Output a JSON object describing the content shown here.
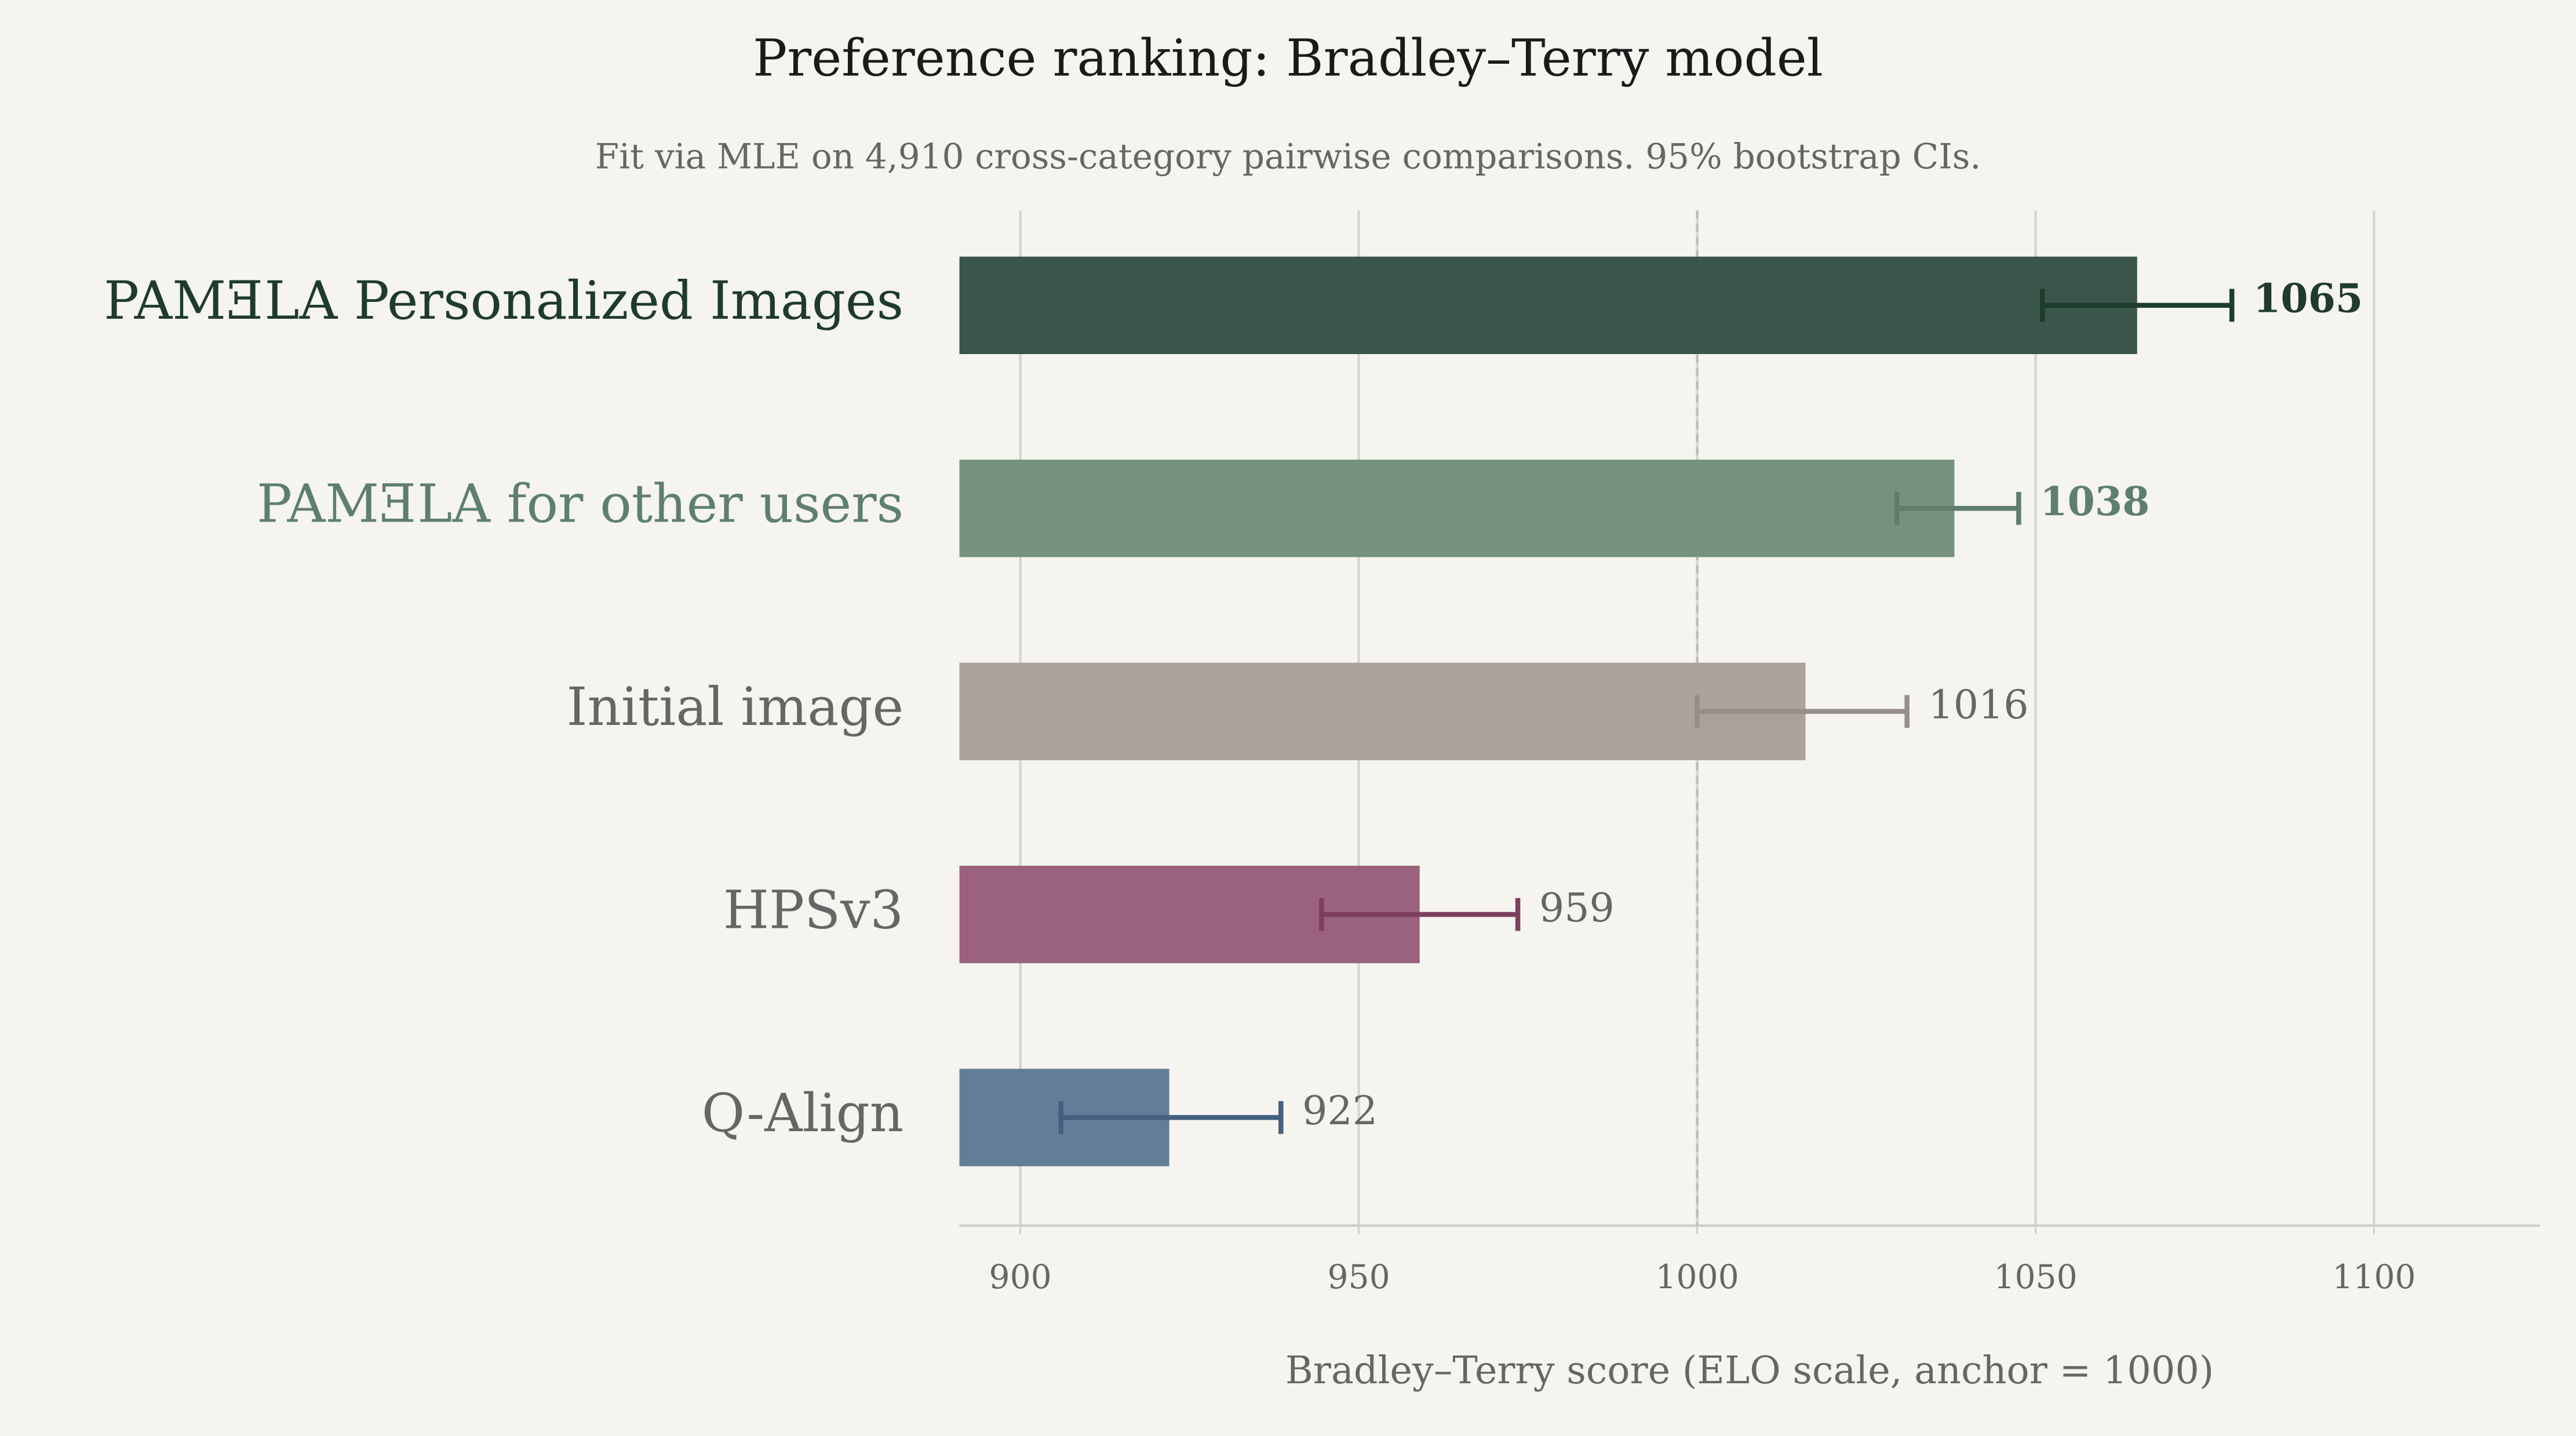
{
  "chart_data": {
    "type": "bar",
    "orientation": "horizontal",
    "title": "Preference ranking: Bradley–Terry model",
    "subtitle": "Fit via MLE on 4,910 cross-category pairwise comparisons. 95% bootstrap CIs.",
    "x_label": "Bradley–Terry score (ELO scale, anchor = 1000)",
    "categories": [
      "PAMƎLA Personalized Images",
      "PAMƎLA for other users",
      "Initial image",
      "HPSv3",
      "Q-Align"
    ],
    "values": [
      1065,
      1038,
      1016,
      959,
      922
    ],
    "ci": [
      [
        1051,
        1079
      ],
      [
        1029.5,
        1047.5
      ],
      [
        1000,
        1031
      ],
      [
        944.5,
        973.5
      ],
      [
        906,
        938.5
      ]
    ],
    "colors": [
      "#3a5549",
      "#76927f",
      "#aba29b",
      "#9a627c",
      "#637d99"
    ],
    "error_colors": [
      "#1d3d2f",
      "#5e7d6c",
      "#968e88",
      "#7d3f5e",
      "#44607f"
    ],
    "label_colors": [
      "#1f3a2e",
      "#5f7f6e",
      "#666666",
      "#666666",
      "#666666"
    ],
    "bold_value_labels": [
      true,
      true,
      false,
      false,
      false
    ],
    "reference_line": 1000,
    "xlim": [
      891,
      1124.5
    ],
    "xticks": [
      900,
      950,
      1000,
      1050,
      1100
    ],
    "grid": true
  }
}
